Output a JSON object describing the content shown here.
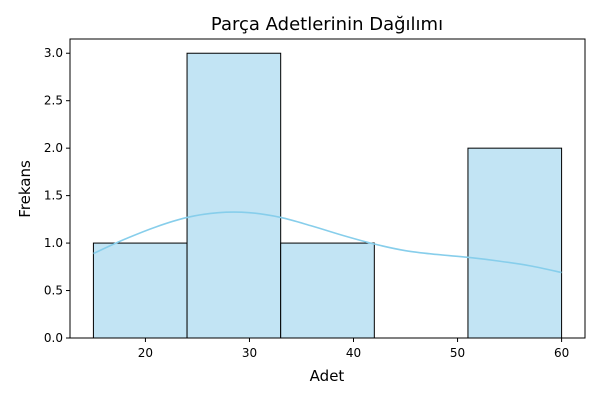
{
  "chart_data": {
    "type": "bar",
    "title": "Parça Adetlerinin Dağılımı",
    "xlabel": "Adet",
    "ylabel": "Frekans",
    "bins": [
      {
        "from": 15.0,
        "to": 24.0,
        "value": 1
      },
      {
        "from": 24.0,
        "to": 33.0,
        "value": 3
      },
      {
        "from": 33.0,
        "to": 42.0,
        "value": 1
      },
      {
        "from": 42.0,
        "to": 51.0,
        "value": 0
      },
      {
        "from": 51.0,
        "to": 60.0,
        "value": 2
      }
    ],
    "kde": {
      "x": [
        15,
        18,
        21,
        24,
        27,
        30,
        33,
        36,
        39,
        42,
        45,
        48,
        51,
        54,
        57,
        60
      ],
      "y": [
        0.89,
        1.04,
        1.17,
        1.27,
        1.32,
        1.32,
        1.27,
        1.18,
        1.08,
        0.99,
        0.92,
        0.88,
        0.85,
        0.81,
        0.76,
        0.69
      ]
    },
    "xlim": [
      12.75,
      62.25
    ],
    "ylim": [
      0,
      3.15
    ],
    "xticks": [
      "20",
      "30",
      "40",
      "50",
      "60"
    ],
    "yticks": [
      "0.0",
      "0.5",
      "1.0",
      "1.5",
      "2.0",
      "2.5",
      "3.0"
    ],
    "grid": false,
    "colors": {
      "bar_fill": "#c2e4f4",
      "bar_edge": "#000000",
      "kde_line": "#87ceeb"
    }
  }
}
